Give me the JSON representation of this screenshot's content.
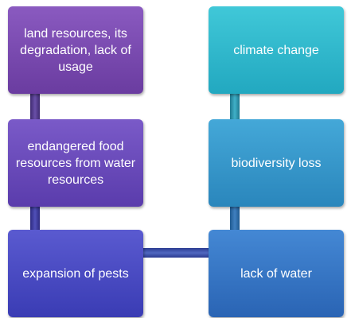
{
  "nodes": [
    {
      "label": "land resources, its degradation, lack of usage"
    },
    {
      "label": "endangered food resources from water resources"
    },
    {
      "label": "expansion of pests"
    },
    {
      "label": "climate change"
    },
    {
      "label": "biodiversity loss"
    },
    {
      "label": "lack of water"
    }
  ]
}
